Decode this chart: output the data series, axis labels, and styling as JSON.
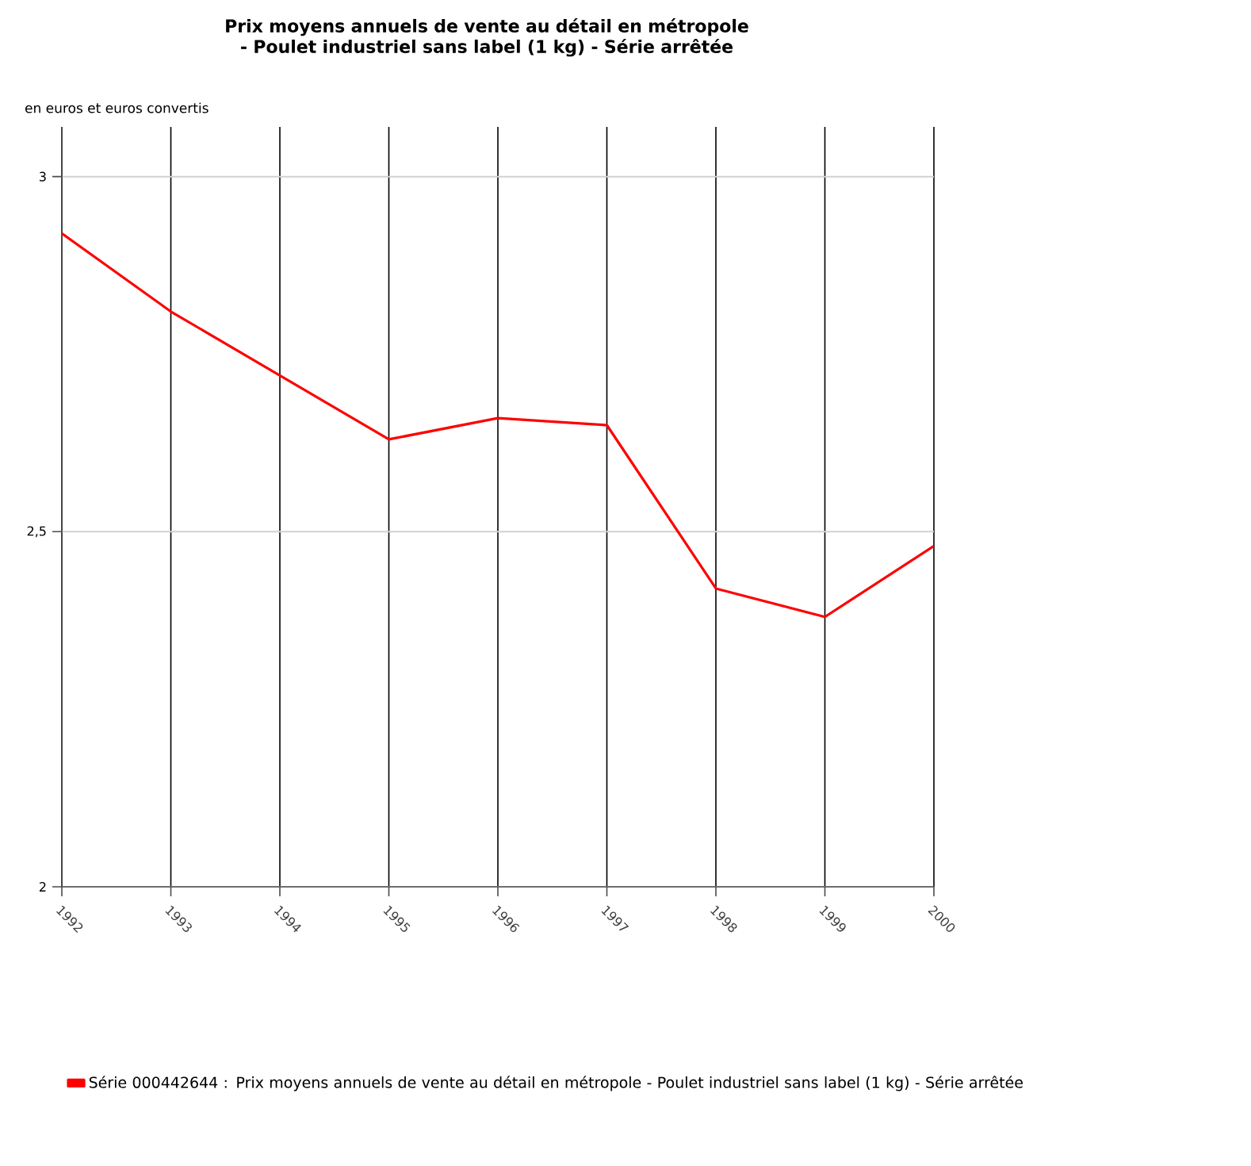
{
  "chart_data": {
    "type": "line",
    "title": "Prix moyens annuels de vente au détail en métropole - Poulet industriel sans label (1 kg) - Série arrêtée",
    "ylabel": "en euros et euros convertis",
    "x": [
      1992,
      1993,
      1994,
      1995,
      1996,
      1997,
      1998,
      1999,
      2000
    ],
    "series": [
      {
        "name": "Série 000442644 : Prix moyens annuels de vente au détail en métropole - Poulet industriel sans label (1 kg) - Série arrêtée",
        "color": "#ff0000",
        "values": [
          2.92,
          2.81,
          2.72,
          2.63,
          2.66,
          2.65,
          2.42,
          2.38,
          2.48
        ]
      }
    ],
    "xlim": [
      1992,
      2000
    ],
    "xticks": [
      1992,
      1993,
      1994,
      1995,
      1996,
      1997,
      1998,
      1999,
      2000
    ],
    "ylim": [
      2,
      3.07
    ],
    "yticks": [
      2,
      {
        "value": 2.5,
        "label": "2,5"
      },
      3
    ],
    "grid": true,
    "legend": "bottom",
    "marker": "none",
    "line_style": "solid"
  }
}
